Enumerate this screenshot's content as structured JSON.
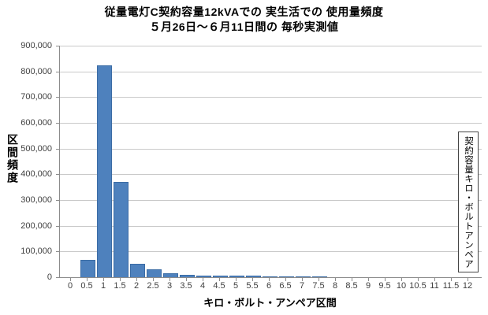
{
  "title": {
    "line1": "従量電灯C契約容量12kVAでの 実生活での 使用量頻度",
    "line2": "５月26日～６月11日間の 毎秒実測値"
  },
  "y_axis": {
    "label": "区間頻度",
    "tick_labels": [
      "900,000",
      "800,000",
      "700,000",
      "600,000",
      "500,000",
      "400,000",
      "300,000",
      "200,000",
      "100,000",
      "0"
    ]
  },
  "x_axis": {
    "label": "キロ・ボルト・アンペア区間"
  },
  "annotation_box": {
    "text": "契約容量キロ・ボルトアンペア"
  },
  "colors": {
    "bar_fill": "#4e81bd",
    "bar_border": "#3b6ca5",
    "gridline": "#c9c9c9",
    "axis_line": "#8c8c8c",
    "tick_text": "#3f3f3f"
  },
  "chart_data": {
    "type": "bar",
    "title": "従量電灯C契約容量12kVAでの実生活での使用量頻度",
    "subtitle": "５月26日～６月11日間の毎秒実測値",
    "xlabel": "キロ・ボルト・アンペア区間",
    "ylabel": "区間頻度",
    "ylim": [
      0,
      900000
    ],
    "ytick_step": 100000,
    "grid": true,
    "legend": false,
    "annotation": "契約容量キロ・ボルトアンペア",
    "categories": [
      "0",
      "0.5",
      "1",
      "1.5",
      "2",
      "2.5",
      "3",
      "3.5",
      "4",
      "4.5",
      "5",
      "5.5",
      "6",
      "6.5",
      "7",
      "7.5",
      "8",
      "8.5",
      "9",
      "9.5",
      "10",
      "10.5",
      "11",
      "11.5",
      "12"
    ],
    "values": [
      0,
      68000,
      825000,
      370000,
      52000,
      30000,
      16000,
      8000,
      7000,
      6000,
      5000,
      5000,
      4000,
      4000,
      4000,
      3000,
      0,
      0,
      0,
      0,
      0,
      0,
      0,
      0,
      0
    ]
  }
}
